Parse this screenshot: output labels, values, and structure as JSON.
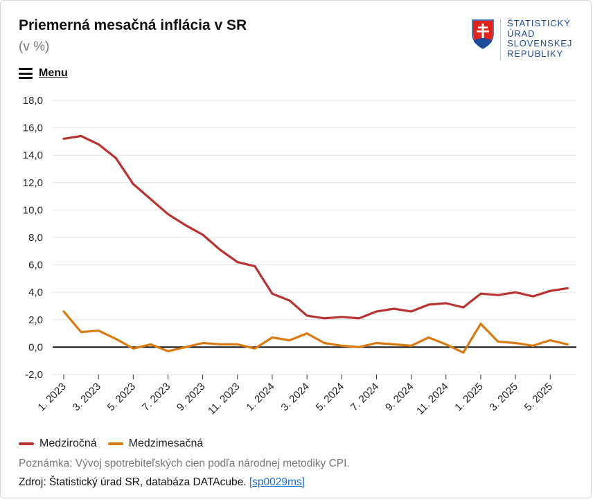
{
  "header": {
    "title": "Priemerná mesačná inflácia v SR",
    "subtitle": "(v %)",
    "menu_label": "Menu"
  },
  "logo": {
    "lines": [
      "ŠTATISTICKÝ",
      "ÚRAD",
      "SLOVENSKEJ",
      "REPUBLIKY"
    ]
  },
  "footer": {
    "note": "Poznámka: Vývoj spotrebiteľských cien podľa národnej metodiky CPI.",
    "source_prefix": "Zdroj: Štatistický úrad SR, databáza DATAcube.",
    "source_link": "[sp0029ms]"
  },
  "chart_data": {
    "type": "line",
    "title": "Priemerná mesačná inflácia v SR",
    "subtitle": "(v %)",
    "xlabel": "",
    "ylabel": "",
    "ylim": [
      -2,
      18
    ],
    "yticks": [
      18,
      16,
      14,
      12,
      10,
      8,
      6,
      4,
      2,
      0,
      -2
    ],
    "ytick_labels": [
      "18,0",
      "16,0",
      "14,0",
      "12,0",
      "10,0",
      "8,0",
      "6,0",
      "4,0",
      "2,0",
      "0,0",
      "-2,0"
    ],
    "grid": true,
    "categories": [
      "1. 2023",
      "2. 2023",
      "3. 2023",
      "4. 2023",
      "5. 2023",
      "6. 2023",
      "7. 2023",
      "8. 2023",
      "9. 2023",
      "10. 2023",
      "11. 2023",
      "12. 2023",
      "1. 2024",
      "2. 2024",
      "3. 2024",
      "4. 2024",
      "5. 2024",
      "6. 2024",
      "7. 2024",
      "8. 2024",
      "9. 2024",
      "10. 2024",
      "11. 2024",
      "12. 2024",
      "1. 2025",
      "2. 2025",
      "3. 2025",
      "4. 2025",
      "5. 2025",
      "6. 2025"
    ],
    "xtick_labels": [
      "1. 2023",
      "3. 2023",
      "5. 2023",
      "7. 2023",
      "9. 2023",
      "11. 2023",
      "1. 2024",
      "3. 2024",
      "5. 2024",
      "7. 2024",
      "9. 2024",
      "11. 2024",
      "1. 2025",
      "3. 2025",
      "5. 2025"
    ],
    "series": [
      {
        "name": "Medziročná",
        "color": "#b83232",
        "values": [
          15.2,
          15.4,
          14.8,
          13.8,
          11.9,
          10.8,
          9.7,
          8.9,
          8.2,
          7.1,
          6.2,
          5.9,
          3.9,
          3.4,
          2.3,
          2.1,
          2.2,
          2.1,
          2.6,
          2.8,
          2.6,
          3.1,
          3.2,
          2.9,
          3.9,
          3.8,
          4.0,
          3.7,
          4.1,
          4.3
        ]
      },
      {
        "name": "Medzimesačná",
        "color": "#d87a10",
        "values": [
          2.6,
          1.1,
          1.2,
          0.6,
          -0.1,
          0.2,
          -0.3,
          0.0,
          0.3,
          0.2,
          0.2,
          -0.1,
          0.7,
          0.5,
          1.0,
          0.3,
          0.1,
          0.0,
          0.3,
          0.2,
          0.1,
          0.7,
          0.2,
          -0.4,
          1.7,
          0.4,
          0.3,
          0.1,
          0.5,
          0.2
        ]
      }
    ],
    "legend_position": "bottom-left"
  }
}
